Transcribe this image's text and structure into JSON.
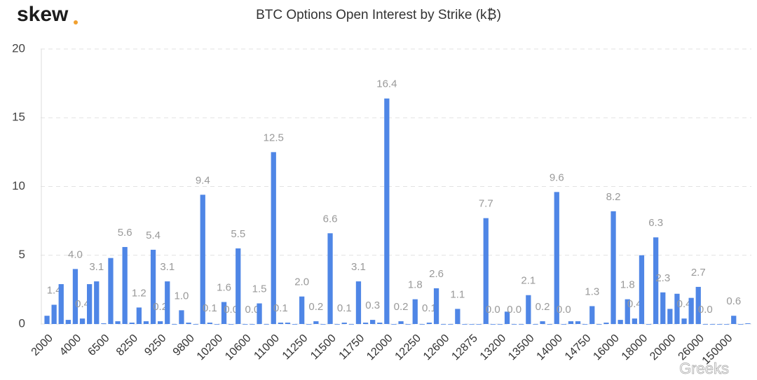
{
  "logo": "skew",
  "watermark": "Greeks",
  "chart_data": {
    "type": "bar",
    "title": "BTC Options Open Interest by Strike (k₿)",
    "categories": [
      "2000",
      null,
      null,
      null,
      "4000",
      null,
      null,
      null,
      "6500",
      null,
      null,
      null,
      "8250",
      null,
      null,
      null,
      "9250",
      null,
      null,
      null,
      "9800",
      null,
      null,
      null,
      "10200",
      null,
      null,
      null,
      "10600",
      null,
      null,
      null,
      "11000",
      null,
      null,
      null,
      "11250",
      null,
      null,
      null,
      "11500",
      null,
      null,
      null,
      "11750",
      null,
      null,
      null,
      "12000",
      null,
      null,
      null,
      "12250",
      null,
      null,
      null,
      "12600",
      null,
      null,
      null,
      "12875",
      null,
      null,
      null,
      "13200",
      null,
      null,
      null,
      "13500",
      null,
      null,
      null,
      "14000",
      null,
      null,
      null,
      "14750",
      null,
      null,
      null,
      "16000",
      null,
      null,
      null,
      "18000",
      null,
      null,
      null,
      "20000",
      null,
      null,
      null,
      "26000",
      null,
      null,
      null,
      "150000",
      null,
      null,
      null
    ],
    "values": [
      0.6,
      1.4,
      2.9,
      0.3,
      4.0,
      0.4,
      2.9,
      3.1,
      0.05,
      4.8,
      0.2,
      5.6,
      0.1,
      1.2,
      0.2,
      5.4,
      0.2,
      3.1,
      0,
      1.0,
      0.1,
      0,
      9.4,
      0.1,
      0,
      1.6,
      0,
      5.5,
      0,
      0,
      1.5,
      0,
      12.5,
      0.1,
      0.1,
      0,
      2.0,
      0,
      0.2,
      0,
      6.6,
      0,
      0.1,
      0,
      3.1,
      0.1,
      0.3,
      0.1,
      16.4,
      0,
      0.2,
      0,
      1.8,
      0,
      0.1,
      2.6,
      0,
      0,
      1.1,
      0,
      0,
      0,
      7.7,
      0,
      0,
      0.9,
      0,
      0,
      2.1,
      0,
      0.2,
      0,
      9.6,
      0,
      0.2,
      0.2,
      0,
      1.3,
      0,
      0.1,
      8.2,
      0.3,
      1.8,
      0.4,
      5.0,
      0,
      6.3,
      2.3,
      1.1,
      2.2,
      0.4,
      1.9,
      2.7,
      0,
      0,
      0,
      0,
      0.6,
      0,
      0.05
    ],
    "value_labels": [
      null,
      "1.4",
      null,
      null,
      "4.0",
      "0.4",
      null,
      "3.1",
      null,
      null,
      null,
      "5.6",
      null,
      "1.2",
      null,
      "5.4",
      "0.2",
      "3.1",
      null,
      "1.0",
      null,
      null,
      "9.4",
      "0.1",
      null,
      "1.6",
      "0.0",
      "5.5",
      null,
      "0.0",
      "1.5",
      null,
      "12.5",
      "0.1",
      null,
      null,
      "2.0",
      null,
      "0.2",
      null,
      "6.6",
      null,
      "0.1",
      null,
      "3.1",
      null,
      "0.3",
      null,
      "16.4",
      null,
      "0.2",
      null,
      "1.8",
      null,
      "0.1",
      "2.6",
      null,
      null,
      "1.1",
      null,
      null,
      null,
      "7.7",
      "0.0",
      null,
      null,
      "0.0",
      null,
      "2.1",
      null,
      "0.2",
      null,
      "9.6",
      "0.0",
      null,
      null,
      null,
      "1.3",
      null,
      null,
      "8.2",
      null,
      "1.8",
      "0.4",
      null,
      null,
      "6.3",
      "2.3",
      null,
      null,
      "0.4",
      null,
      "2.7",
      "0.0",
      null,
      null,
      null,
      "0.6",
      null,
      null
    ],
    "color": "#4f86e6",
    "ylim": [
      0,
      20
    ],
    "yticks": [
      0,
      5,
      10,
      15,
      20
    ],
    "grid": true
  }
}
